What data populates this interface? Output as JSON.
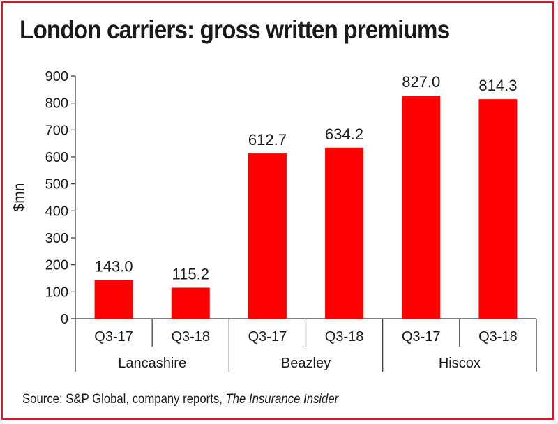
{
  "title": "London carriers: gross written premiums",
  "source": {
    "text": "Source: S&P Global, company reports, ",
    "italic": "The Insurance Insider"
  },
  "chart_data": {
    "type": "bar",
    "title": "London carriers: gross written premiums",
    "ylabel": "$mn",
    "xlabel": "",
    "ylim": [
      0,
      900
    ],
    "yticks": [
      0,
      100,
      200,
      300,
      400,
      500,
      600,
      700,
      800,
      900
    ],
    "grid": false,
    "bar_color": "#ff0000",
    "groups": [
      "Lancashire",
      "Beazley",
      "Hiscox"
    ],
    "categories": [
      "Q3-17",
      "Q3-18",
      "Q3-17",
      "Q3-18",
      "Q3-17",
      "Q3-18"
    ],
    "values": [
      143.0,
      115.2,
      612.7,
      634.2,
      827.0,
      814.3
    ],
    "data_labels": [
      "143.0",
      "115.2",
      "612.7",
      "634.2",
      "827.0",
      "814.3"
    ]
  }
}
